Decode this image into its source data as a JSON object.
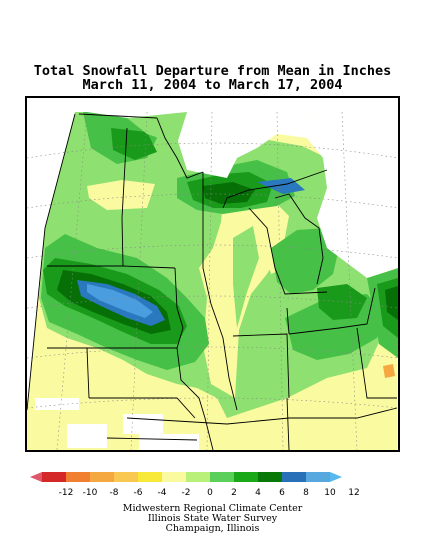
{
  "title": {
    "line1": "Total Snowfall Departure from Mean in Inches",
    "line2": "March 11, 2004 to March 17, 2004"
  },
  "legend": {
    "ticks": [
      "-12",
      "-10",
      "-8",
      "-6",
      "-4",
      "-2",
      "0",
      "2",
      "4",
      "6",
      "8",
      "10",
      "12"
    ],
    "colors": [
      "#e0566a",
      "#d42828",
      "#f08030",
      "#f5a840",
      "#f8c850",
      "#f8e838",
      "#fafaa0",
      "#b8f07a",
      "#5ad05a",
      "#18a818",
      "#087808",
      "#2870b8",
      "#58a8e0",
      "#58b8f0"
    ]
  },
  "credits": {
    "line1": "Midwestern Regional Climate Center",
    "line2": "Illinois State Water Survey",
    "line3": "Champaign, Illinois"
  }
}
